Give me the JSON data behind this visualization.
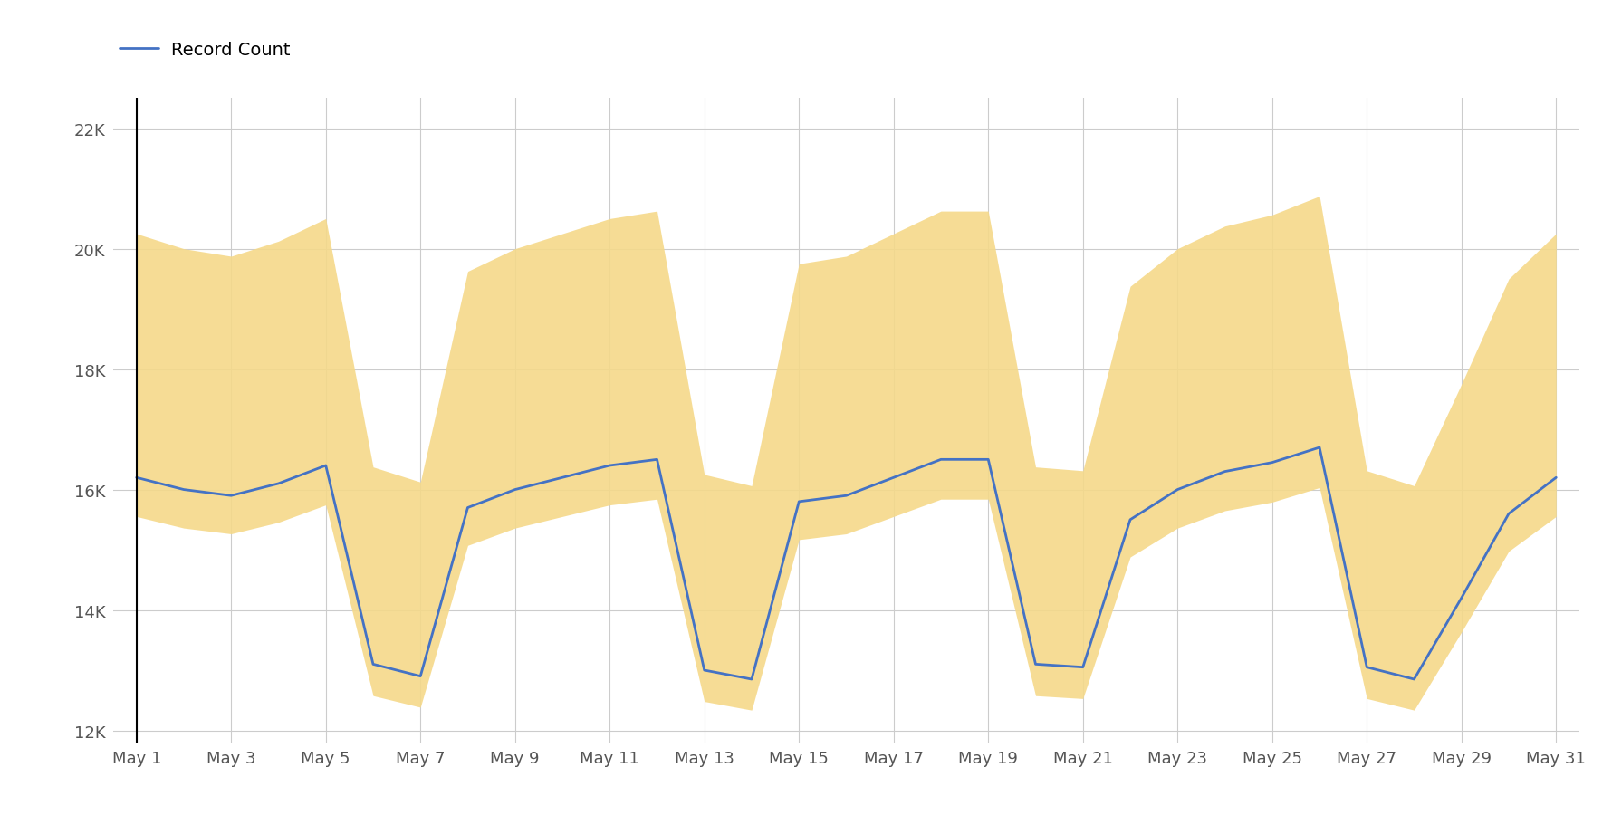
{
  "dates": [
    1,
    2,
    3,
    4,
    5,
    6,
    7,
    8,
    9,
    10,
    11,
    12,
    13,
    14,
    15,
    16,
    17,
    18,
    19,
    20,
    21,
    22,
    23,
    24,
    25,
    26,
    27,
    28,
    29,
    30,
    31
  ],
  "record_count": [
    16200,
    16000,
    15900,
    16100,
    16400,
    13100,
    12900,
    15700,
    16000,
    16200,
    16400,
    16500,
    13000,
    12850,
    15800,
    15900,
    16200,
    16500,
    16500,
    13100,
    13050,
    15500,
    16000,
    16300,
    16450,
    16700,
    13050,
    12850,
    14200,
    15600,
    16200
  ],
  "upper_factor": 1.25,
  "lower_factor": 0.96,
  "line_color": "#4472C4",
  "band_color": "#F5D98A",
  "band_alpha": 0.9,
  "background_color": "#ffffff",
  "grid_color": "#cccccc",
  "ytick_labels": [
    "12K",
    "14K",
    "16K",
    "18K",
    "20K",
    "22K"
  ],
  "ytick_values": [
    12000,
    14000,
    16000,
    18000,
    20000,
    22000
  ],
  "ylim": [
    11800,
    22500
  ],
  "xlim_left": 0.5,
  "xlim_right": 31.5,
  "legend_label": "Record Count",
  "x_label_prefix": "May",
  "x_tick_days": [
    1,
    3,
    5,
    7,
    9,
    11,
    13,
    15,
    17,
    19,
    21,
    23,
    25,
    27,
    29,
    31
  ]
}
